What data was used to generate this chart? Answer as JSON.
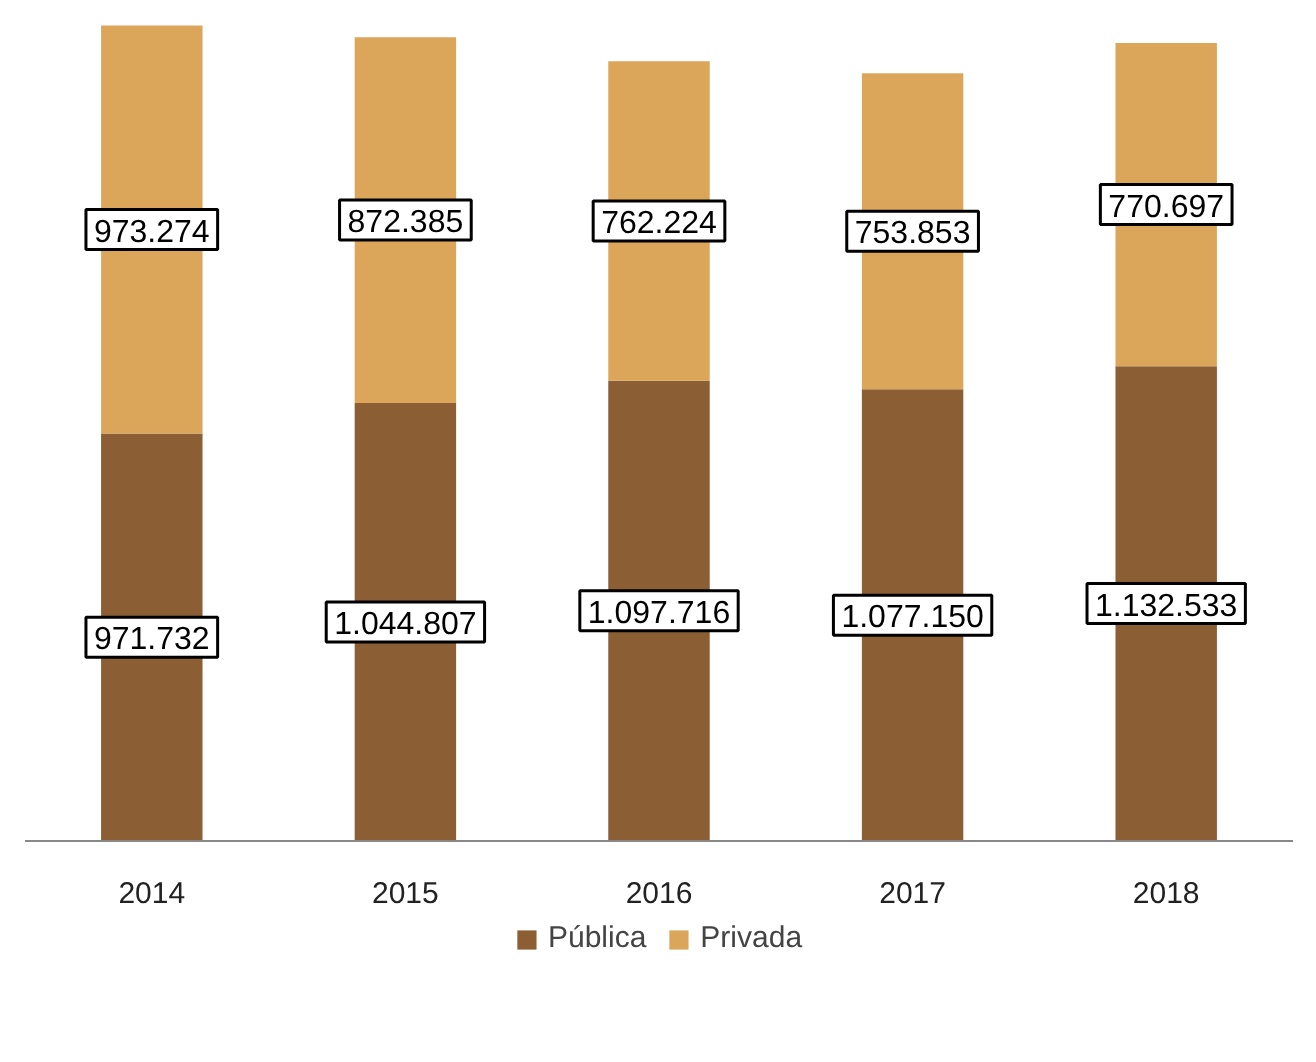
{
  "chart_data": {
    "type": "bar",
    "stacked": true,
    "categories": [
      "2014",
      "2015",
      "2016",
      "2017",
      "2018"
    ],
    "series": [
      {
        "name": "Pública",
        "color": "#8b5e34",
        "values": [
          971732,
          1044807,
          1097716,
          1077150,
          1132533
        ],
        "value_labels": [
          "971.732",
          "1.044.807",
          "1.097.716",
          "1.077.150",
          "1.132.533"
        ]
      },
      {
        "name": "Privada",
        "color": "#dca65a",
        "values": [
          973274,
          872385,
          762224,
          753853,
          770697
        ],
        "value_labels": [
          "973.274",
          "872.385",
          "762.224",
          "753.853",
          "770.697"
        ]
      }
    ],
    "legend": "bottom"
  }
}
